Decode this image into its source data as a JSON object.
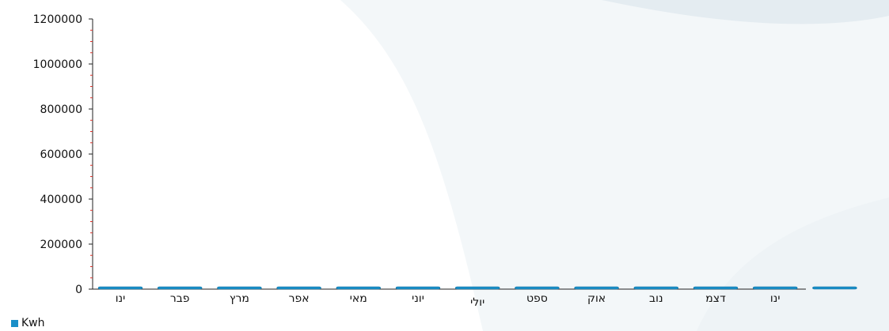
{
  "colors": {
    "series": "#1a8fc8",
    "bar_edge": "#0f6f9f",
    "axis": "#222222",
    "minor_tick": "#e0322b"
  },
  "chart_data": {
    "type": "bar",
    "categories": [
      "ינו",
      "פבר",
      "מרץ",
      "אפר",
      "מאי",
      "יוני",
      "יולי",
      "ספט",
      "אוק",
      "נוב",
      "דצמ",
      "ינו",
      ""
    ],
    "series": [
      {
        "name": "Kwh",
        "values": [
          0,
          0,
          0,
          0,
          0,
          0,
          0,
          0,
          0,
          0,
          0,
          0,
          0
        ]
      }
    ],
    "y_ticks": [
      "0",
      "200000",
      "400000",
      "600000",
      "800000",
      "1000000",
      "1200000"
    ],
    "ylim": [
      0,
      1200000
    ],
    "y_step": 200000,
    "minor_per_major": 4,
    "grid": false,
    "legend_position": "bottom-left",
    "title": "",
    "xlabel": "",
    "ylabel": ""
  }
}
